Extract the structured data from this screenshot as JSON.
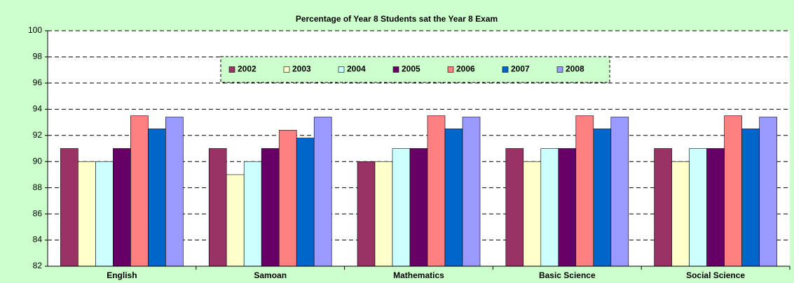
{
  "chart_data": {
    "type": "bar",
    "title": "Percentage of Year 8 Students sat the Year 8 Exam",
    "categories": [
      "English",
      "Samoan",
      "Mathematics",
      "Basic Science",
      "Social Science"
    ],
    "series": [
      {
        "name": "2002",
        "color": "#993366",
        "values": [
          91,
          91,
          90,
          91,
          91
        ]
      },
      {
        "name": "2003",
        "color": "#ffffcc",
        "values": [
          90,
          89,
          90,
          90,
          90
        ]
      },
      {
        "name": "2004",
        "color": "#ccffff",
        "values": [
          90,
          90,
          91,
          91,
          91
        ]
      },
      {
        "name": "2005",
        "color": "#660066",
        "values": [
          91,
          91,
          91,
          91,
          91
        ]
      },
      {
        "name": "2006",
        "color": "#ff8080",
        "values": [
          93.5,
          92.4,
          93.5,
          93.5,
          93.5
        ]
      },
      {
        "name": "2007",
        "color": "#0066cc",
        "values": [
          92.5,
          91.8,
          92.5,
          92.5,
          92.5
        ]
      },
      {
        "name": "2008",
        "color": "#9999ff",
        "values": [
          93.4,
          93.4,
          93.4,
          93.4,
          93.4
        ]
      }
    ],
    "ylim": [
      82,
      100
    ],
    "yticks": [
      82,
      84,
      86,
      88,
      90,
      92,
      94,
      96,
      98,
      100
    ],
    "grid": true,
    "legend": "top"
  }
}
